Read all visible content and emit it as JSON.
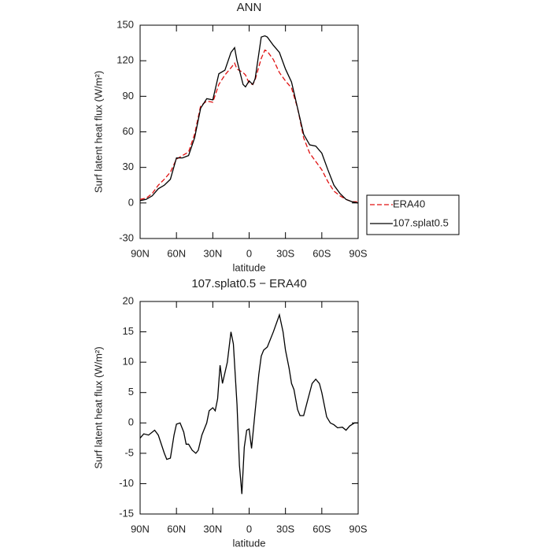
{
  "chart_data": [
    {
      "type": "line",
      "title": "ANN",
      "x_label": "latitude",
      "y_label": "Surf latent heat flux (W/m²)",
      "x": [
        90,
        85,
        80,
        75,
        70,
        65,
        60,
        55,
        50,
        45,
        40,
        35,
        30,
        25,
        20,
        15,
        12,
        10,
        5,
        3,
        0,
        -3,
        -5,
        -10,
        -13,
        -15,
        -20,
        -25,
        -30,
        -35,
        -40,
        -45,
        -50,
        -55,
        -60,
        -65,
        -70,
        -75,
        -80,
        -85,
        -90
      ],
      "series": [
        {
          "name": "ERA40",
          "color": "#e01010",
          "dashed": true,
          "values": [
            3,
            4,
            8,
            15,
            20,
            26,
            37,
            40,
            43,
            58,
            82,
            86,
            85,
            100,
            108,
            114,
            118,
            113,
            110,
            108,
            101,
            100,
            104,
            122,
            129,
            128,
            121,
            110,
            103,
            97,
            80,
            55,
            42,
            35,
            28,
            18,
            10,
            6,
            3,
            1,
            1
          ]
        },
        {
          "name": "107.splat0.5",
          "color": "#000000",
          "dashed": false,
          "values": [
            2,
            3,
            6,
            12,
            15,
            20,
            38,
            38,
            40,
            55,
            80,
            88,
            87,
            109,
            112,
            127,
            131,
            120,
            100,
            98,
            103,
            100,
            105,
            140,
            141,
            140,
            133,
            127,
            113,
            102,
            80,
            58,
            49,
            48,
            42,
            28,
            15,
            8,
            3,
            1,
            0
          ]
        }
      ],
      "xlim": [
        90,
        -90
      ],
      "xticks": [
        {
          "value": 90,
          "label": "90N"
        },
        {
          "value": 60,
          "label": "60N"
        },
        {
          "value": 30,
          "label": "30N"
        },
        0,
        {
          "value": -30,
          "label": "30S"
        },
        {
          "value": -60,
          "label": "60S"
        },
        {
          "value": -90,
          "label": "90S"
        }
      ],
      "ylim": [
        -30,
        150
      ],
      "yticks": [
        -30,
        0,
        30,
        60,
        90,
        120,
        150
      ],
      "legend": "right"
    },
    {
      "type": "line",
      "title": "107.splat0.5 − ERA40",
      "x_label": "latitude",
      "y_label": "Surf latent heat flux (W/m²)",
      "x": [
        90,
        87,
        83,
        78,
        75,
        70,
        68,
        65,
        62,
        60,
        57,
        54,
        52,
        50,
        47,
        44,
        42,
        39,
        35,
        33,
        30,
        28,
        26,
        24,
        22,
        18,
        15,
        13,
        10,
        8,
        6,
        4,
        2,
        0,
        -2,
        -5,
        -8,
        -10,
        -12,
        -15,
        -20,
        -25,
        -28,
        -30,
        -33,
        -35,
        -37,
        -40,
        -42,
        -45,
        -48,
        -52,
        -55,
        -58,
        -60,
        -64,
        -67,
        -70,
        -73,
        -77,
        -80,
        -83,
        -87,
        -90
      ],
      "series": [
        {
          "color": "#000000",
          "dashed": false,
          "values": [
            -2.5,
            -1.8,
            -2,
            -1.2,
            -2,
            -5,
            -6,
            -5.8,
            -2,
            -0.2,
            0,
            -1.5,
            -3.5,
            -3.5,
            -4.5,
            -5,
            -4.5,
            -2,
            0,
            2,
            2.5,
            2,
            4,
            9.5,
            6.5,
            10,
            15,
            13,
            3,
            -7,
            -11.7,
            -4,
            -1.2,
            -1,
            -4.2,
            2,
            8,
            11,
            12,
            12.5,
            15,
            17.8,
            15,
            12,
            9,
            6.5,
            5.5,
            2.2,
            1.2,
            1.2,
            3.5,
            6.5,
            7.2,
            6.5,
            5,
            1,
            0,
            -0.3,
            -0.8,
            -0.7,
            -1.2,
            -0.5,
            0,
            0
          ]
        }
      ],
      "xlim": [
        90,
        -90
      ],
      "xticks": [
        {
          "value": 90,
          "label": "90N"
        },
        {
          "value": 60,
          "label": "60N"
        },
        {
          "value": 30,
          "label": "30N"
        },
        0,
        {
          "value": -30,
          "label": "30S"
        },
        {
          "value": -60,
          "label": "60S"
        },
        {
          "value": -90,
          "label": "90S"
        }
      ],
      "ylim": [
        -15,
        20
      ],
      "yticks": [
        -15,
        -10,
        -5,
        0,
        5,
        10,
        15,
        20
      ]
    }
  ]
}
